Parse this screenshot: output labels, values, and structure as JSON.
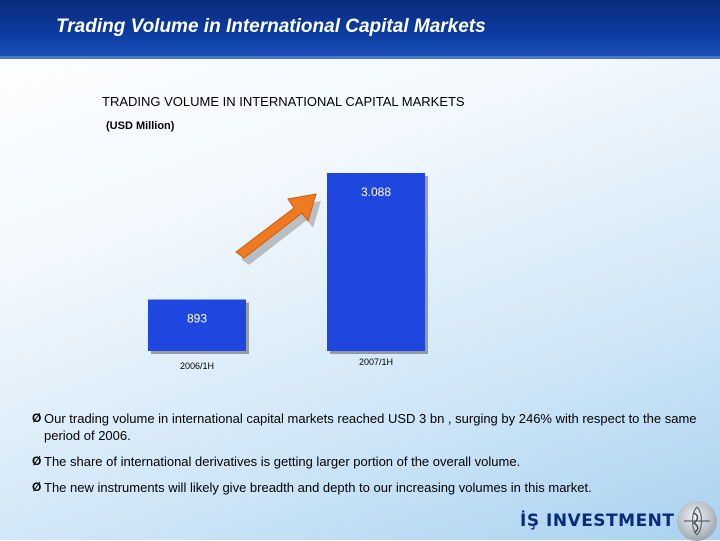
{
  "header": {
    "title": "Trading Volume in International Capital Markets"
  },
  "chart_data": {
    "type": "bar",
    "title": "TRADING VOLUME IN INTERNATIONAL CAPITAL MARKETS",
    "unit": "(USD Million)",
    "categories": [
      "2006/1H",
      "2007/1H"
    ],
    "values": [
      893,
      3088
    ],
    "data_labels": [
      "893",
      "3.088"
    ],
    "bar_color": "#1f47e0",
    "arrow_color": "#f07a20",
    "ylim": [
      0,
      3088
    ],
    "grid": false,
    "legend": "none"
  },
  "bullets": [
    "Our trading volume in international capital markets reached USD 3 bn , surging by 246% with respect to the same period of 2006.",
    "The share of international derivatives is getting larger portion of the overall volume.",
    "The new instruments will likely give breadth and depth to our increasing volumes in this market."
  ],
  "bullet_glyph": "Ø",
  "logo": {
    "text": "İŞ INVESTMENT"
  }
}
